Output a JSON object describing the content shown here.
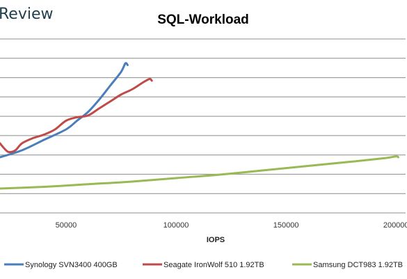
{
  "brand": {
    "text": "Review"
  },
  "chart_data": {
    "type": "line",
    "title": "SQL-Workload",
    "xlabel": "IOPS",
    "ylabel": "",
    "xlim": [
      20000,
      205000
    ],
    "ylim": [
      0,
      10
    ],
    "x_ticks": [
      50000,
      100000,
      150000,
      200000
    ],
    "x_tick_labels": [
      "50000",
      "100000",
      "150000",
      "200000"
    ],
    "grid": true,
    "legend_position": "bottom",
    "series": [
      {
        "name": "Synology SVN3400 400GB",
        "color": "#4a7ebb",
        "points": [
          [
            20000,
            3.2
          ],
          [
            30000,
            3.6
          ],
          [
            40000,
            4.2
          ],
          [
            50000,
            4.8
          ],
          [
            55000,
            5.3
          ],
          [
            60000,
            5.8
          ],
          [
            65000,
            6.5
          ],
          [
            70000,
            7.3
          ],
          [
            75000,
            8.1
          ],
          [
            77000,
            8.6
          ],
          [
            78000,
            8.5
          ]
        ]
      },
      {
        "name": "Seagate IronWolf 510 1.92TB",
        "color": "#be4b48",
        "points": [
          [
            20000,
            4.0
          ],
          [
            22000,
            3.7
          ],
          [
            24000,
            3.5
          ],
          [
            27000,
            3.6
          ],
          [
            30000,
            4.0
          ],
          [
            35000,
            4.3
          ],
          [
            40000,
            4.5
          ],
          [
            45000,
            4.8
          ],
          [
            50000,
            5.3
          ],
          [
            55000,
            5.5
          ],
          [
            60000,
            5.6
          ],
          [
            65000,
            6.0
          ],
          [
            70000,
            6.4
          ],
          [
            75000,
            6.8
          ],
          [
            80000,
            7.1
          ],
          [
            85000,
            7.5
          ],
          [
            88000,
            7.7
          ],
          [
            89000,
            7.6
          ]
        ]
      },
      {
        "name": "Samsung DCT983 1.92TB",
        "color": "#98b954",
        "points": [
          [
            20000,
            1.4
          ],
          [
            40000,
            1.5
          ],
          [
            60000,
            1.65
          ],
          [
            80000,
            1.8
          ],
          [
            100000,
            2.0
          ],
          [
            120000,
            2.2
          ],
          [
            140000,
            2.45
          ],
          [
            160000,
            2.7
          ],
          [
            180000,
            2.95
          ],
          [
            195000,
            3.15
          ],
          [
            200000,
            3.25
          ],
          [
            201000,
            3.2
          ]
        ]
      }
    ]
  }
}
